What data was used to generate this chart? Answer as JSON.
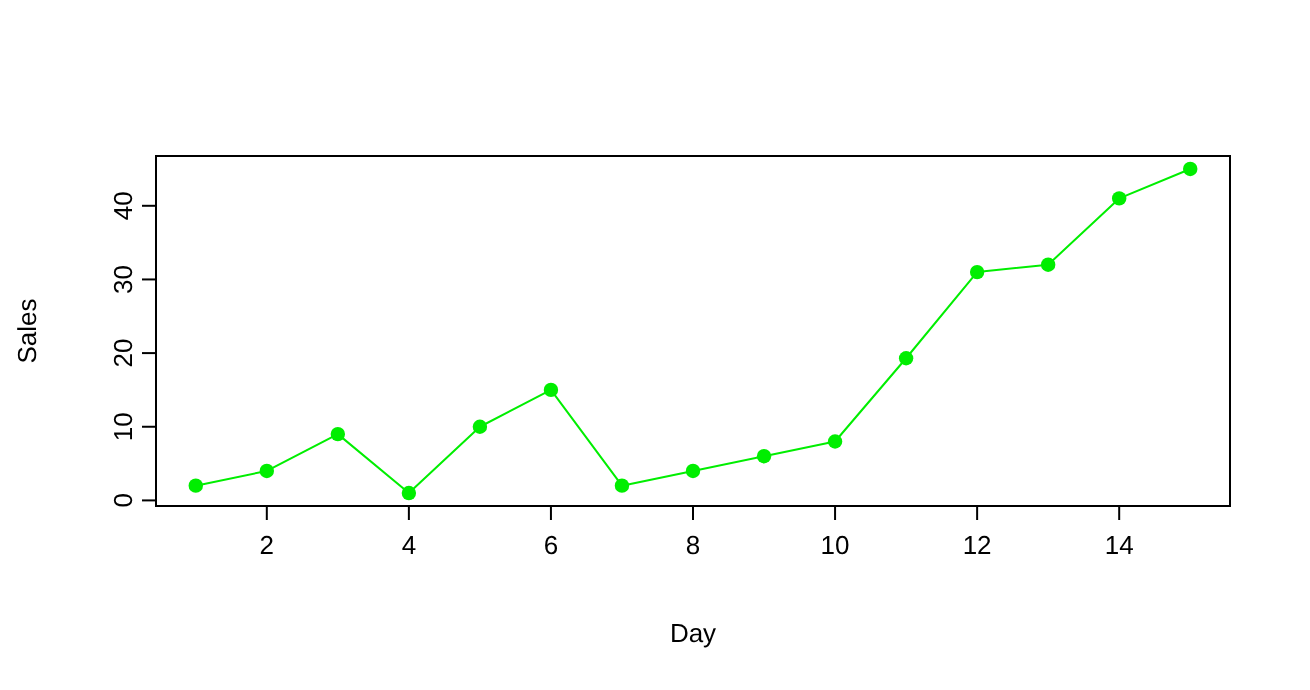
{
  "chart_data": {
    "type": "line",
    "xlabel": "Day",
    "ylabel": "Sales",
    "x": [
      1,
      2,
      3,
      4,
      5,
      6,
      7,
      8,
      9,
      10,
      11,
      12,
      13,
      14,
      15
    ],
    "series": [
      {
        "color": "#00ee00",
        "values": [
          2,
          4,
          9,
          1,
          10,
          15,
          2,
          4,
          6,
          8,
          19.3,
          31,
          32,
          41,
          45
        ]
      }
    ],
    "xlim": [
      0.44,
      15.56
    ],
    "xticks": [
      2,
      4,
      6,
      8,
      10,
      12,
      14
    ],
    "ylim": [
      -0.76,
      46.76
    ],
    "yticks": [
      0,
      10,
      20,
      30,
      40
    ],
    "marker": "circle",
    "line_style": "solid"
  }
}
